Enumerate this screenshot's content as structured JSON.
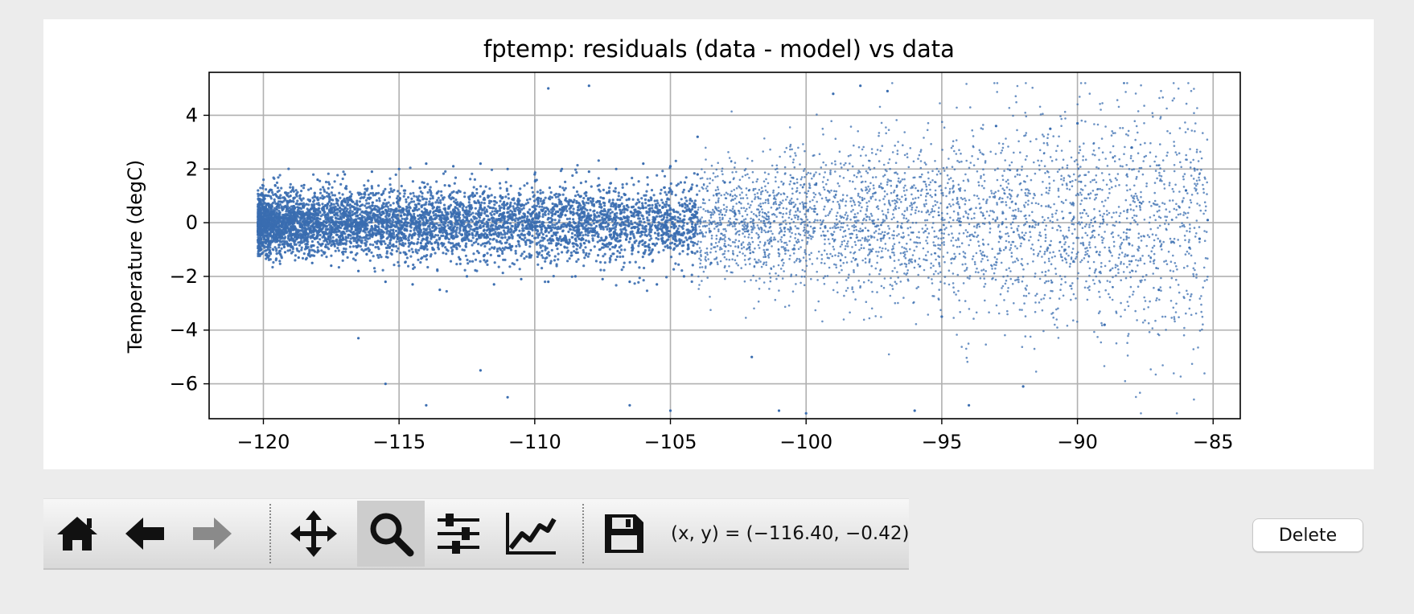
{
  "chart_data": {
    "type": "scatter",
    "title": "fptemp: residuals (data - model) vs data",
    "xlabel": "",
    "ylabel": "Temperature (degC)",
    "xlim": [
      -122,
      -84
    ],
    "ylim": [
      -7.3,
      5.6
    ],
    "x_ticks": [
      -120,
      -115,
      -110,
      -105,
      -100,
      -95,
      -90,
      -85
    ],
    "x_tick_labels": [
      "−120",
      "−115",
      "−110",
      "−105",
      "−100",
      "−95",
      "−90",
      "−85"
    ],
    "y_ticks": [
      -6,
      -4,
      -2,
      0,
      2,
      4
    ],
    "y_tick_labels": [
      "−6",
      "−4",
      "−2",
      "0",
      "2",
      "4"
    ],
    "grid": true,
    "marker_color": "#3a6db0",
    "series": [
      {
        "values": [
          [
            -120.2,
            -0.3
          ],
          [
            -120.0,
            0.2
          ],
          [
            -119.8,
            -0.8
          ],
          [
            -119.5,
            0.6
          ],
          [
            -119.2,
            -1.1
          ],
          [
            -119.0,
            1.0
          ],
          [
            -118.7,
            -1.3
          ],
          [
            -118.5,
            1.4
          ],
          [
            -118.2,
            -1.5
          ],
          [
            -118.0,
            1.6
          ],
          [
            -117.5,
            -1.6
          ],
          [
            -117.0,
            1.8
          ],
          [
            -116.5,
            -1.8
          ],
          [
            -116.0,
            1.9
          ],
          [
            -115.5,
            -2.2
          ],
          [
            -115.0,
            2.0
          ],
          [
            -114.5,
            -2.3
          ],
          [
            -114.0,
            2.2
          ],
          [
            -113.5,
            -2.5
          ],
          [
            -113.0,
            2.1
          ],
          [
            -112.5,
            -2.0
          ],
          [
            -112.0,
            2.2
          ],
          [
            -111.5,
            -2.3
          ],
          [
            -111.0,
            2.0
          ],
          [
            -110.5,
            -2.1
          ],
          [
            -110.0,
            1.8
          ],
          [
            -109.5,
            -2.2
          ],
          [
            -109.0,
            2.0
          ],
          [
            -108.5,
            -2.0
          ],
          [
            -108.0,
            1.9
          ],
          [
            -107.5,
            -2.1
          ],
          [
            -107.0,
            2.0
          ],
          [
            -106.5,
            -2.2
          ],
          [
            -106.0,
            2.2
          ],
          [
            -105.5,
            -2.3
          ],
          [
            -105.0,
            2.1
          ],
          [
            -104.5,
            -2.0
          ],
          [
            -104.0,
            1.8
          ],
          [
            -103.5,
            -1.5
          ],
          [
            -103.0,
            1.5
          ],
          [
            -116.5,
            -4.3
          ],
          [
            -115.5,
            -6.0
          ],
          [
            -114.0,
            -6.8
          ],
          [
            -112.0,
            -5.5
          ],
          [
            -111.0,
            -6.5
          ],
          [
            -109.5,
            5.0
          ],
          [
            -108.0,
            5.1
          ],
          [
            -106.5,
            -6.8
          ],
          [
            -105.0,
            -7.0
          ],
          [
            -104.0,
            3.2
          ],
          [
            -102.0,
            -5.0
          ],
          [
            -101.0,
            -7.0
          ],
          [
            -100.0,
            -7.1
          ],
          [
            -99.0,
            4.8
          ],
          [
            -98.0,
            5.1
          ],
          [
            -97.0,
            4.9
          ],
          [
            -96.0,
            -7.0
          ],
          [
            -95.0,
            -3.5
          ],
          [
            -94.0,
            -6.8
          ],
          [
            -93.0,
            3.6
          ],
          [
            -92.0,
            -6.1
          ],
          [
            -91.0,
            3.5
          ],
          [
            -90.0,
            3.7
          ],
          [
            -89.0,
            -3.8
          ],
          [
            -88.0,
            2.8
          ],
          [
            -87.0,
            -2.5
          ],
          [
            -86.0,
            1.2
          ],
          [
            -85.5,
            -0.6
          ],
          [
            -85.2,
            0.1
          ]
        ]
      }
    ]
  },
  "toolbar": {
    "items": [
      {
        "name": "home-button",
        "icon": "home-icon",
        "active": false,
        "enabled": true
      },
      {
        "name": "back-button",
        "icon": "arrow-left-icon",
        "active": false,
        "enabled": true
      },
      {
        "name": "forward-button",
        "icon": "arrow-right-icon",
        "active": false,
        "enabled": false
      },
      {
        "name": "pan-button",
        "icon": "move-icon",
        "active": false,
        "enabled": true
      },
      {
        "name": "zoom-button",
        "icon": "magnifier-icon",
        "active": true,
        "enabled": true
      },
      {
        "name": "subplots-button",
        "icon": "sliders-icon",
        "active": false,
        "enabled": true
      },
      {
        "name": "edit-axes-button",
        "icon": "line-chart-icon",
        "active": false,
        "enabled": true
      },
      {
        "name": "save-button",
        "icon": "floppy-disk-icon",
        "active": false,
        "enabled": true
      }
    ],
    "coordinates": "(x, y) = (−116.40, −0.42)"
  },
  "delete_label": "Delete"
}
